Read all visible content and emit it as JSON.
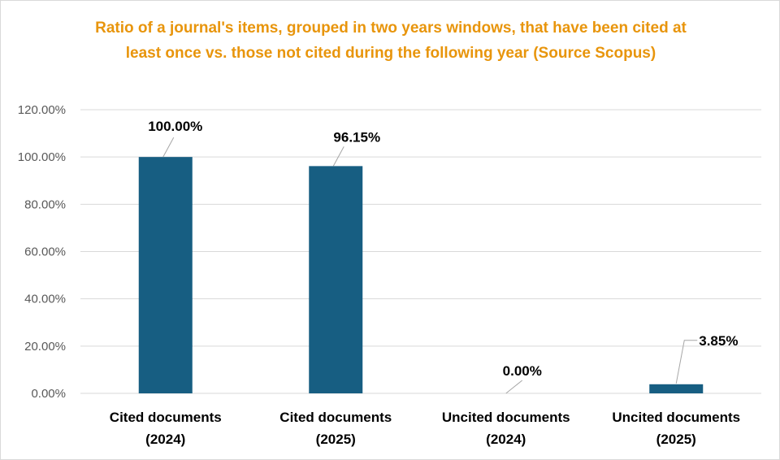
{
  "chart_data": {
    "type": "bar",
    "title": "Ratio of a journal's items, grouped in two years windows, that have been cited at least once vs. those not cited during the following year (Source Scopus)",
    "categories": [
      [
        "Cited documents",
        "(2024)"
      ],
      [
        "Cited documents",
        "(2025)"
      ],
      [
        "Uncited documents",
        "(2024)"
      ],
      [
        "Uncited documents",
        "(2025)"
      ]
    ],
    "values": [
      100.0,
      96.15,
      0.0,
      3.85
    ],
    "data_labels": [
      "100.00%",
      "96.15%",
      "0.00%",
      "3.85%"
    ],
    "ylim": [
      0,
      120
    ],
    "yticks": [
      0,
      20,
      40,
      60,
      80,
      100,
      120
    ],
    "ytick_labels": [
      "0.00%",
      "20.00%",
      "40.00%",
      "60.00%",
      "80.00%",
      "100.00%",
      "120.00%"
    ],
    "xlabel": "",
    "ylabel": "",
    "grid": true,
    "bar_color": "#175e82",
    "title_color": "#e8950c",
    "grid_color": "#d9d9d9",
    "leader_color": "#a6a6a6"
  }
}
